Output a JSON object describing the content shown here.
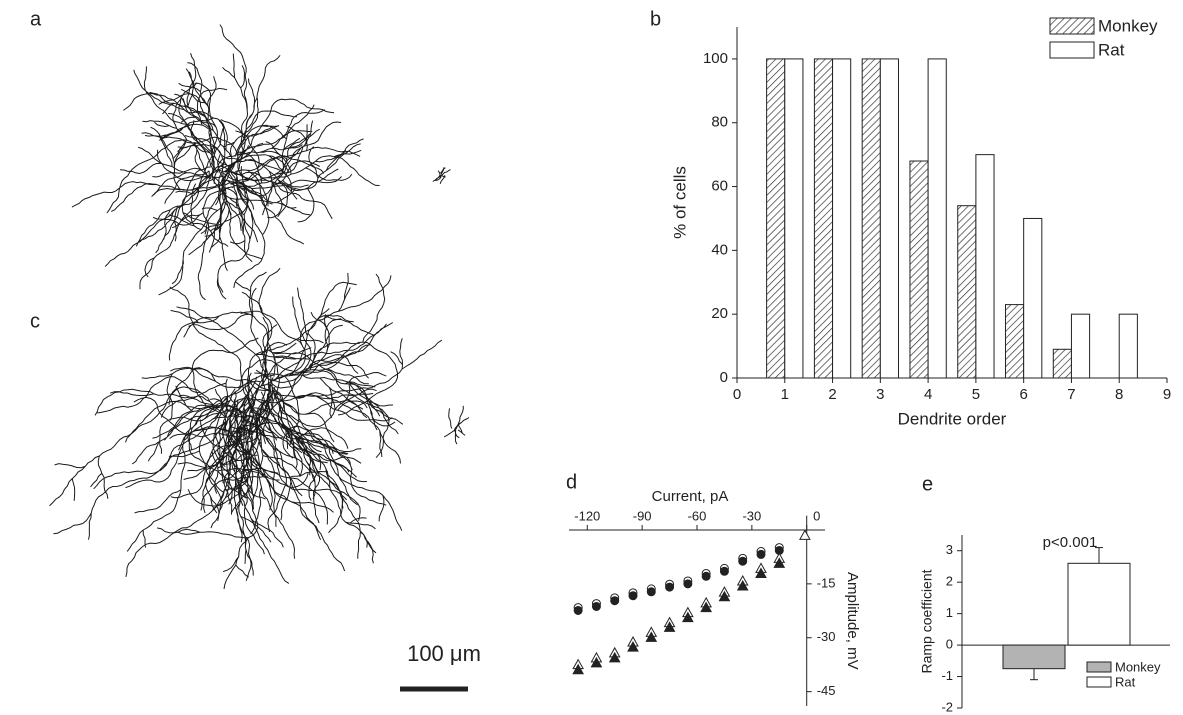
{
  "morphology": {
    "panels": [
      "a",
      "c"
    ],
    "scale_bar": "100 μm"
  },
  "chart_data": [
    {
      "type": "bar",
      "panel": "b",
      "x_label": "Dendrite order",
      "y_label": "% of cells",
      "x": [
        1,
        2,
        3,
        4,
        5,
        6,
        7,
        8
      ],
      "series": [
        {
          "name": "Monkey",
          "color": "#333333",
          "hatch": true,
          "values": [
            100,
            100,
            100,
            68,
            54,
            23,
            9,
            0
          ]
        },
        {
          "name": "Rat",
          "color": "#ffffff",
          "hatch": false,
          "values": [
            100,
            100,
            100,
            100,
            70,
            50,
            20,
            20
          ]
        }
      ],
      "xlim": [
        0,
        9
      ],
      "xticks": [
        0,
        1,
        2,
        3,
        4,
        5,
        6,
        7,
        8,
        9
      ],
      "ylim": [
        0,
        110
      ],
      "yticks": [
        0,
        20,
        40,
        60,
        80,
        100
      ],
      "legend": "top-right"
    },
    {
      "type": "scatter",
      "panel": "d",
      "x_label": "Current, pA",
      "y_label": "Amplitude, mV",
      "series": [
        {
          "marker": "circle",
          "filled": false,
          "color": "#222222",
          "x": [
            -125,
            -115,
            -105,
            -95,
            -85,
            -75,
            -65,
            -55,
            -45,
            -35,
            -25,
            -15
          ],
          "values": [
            -21.6,
            -20.5,
            -18.9,
            -17.5,
            -16.4,
            -15.1,
            -14.2,
            -12.1,
            -10.7,
            -7.9,
            -6.0,
            -4.9
          ]
        },
        {
          "marker": "circle",
          "filled": true,
          "color": "#222222",
          "x": [
            -125,
            -115,
            -105,
            -95,
            -85,
            -75,
            -65,
            -55,
            -45,
            -35,
            -25,
            -15
          ],
          "values": [
            -22.4,
            -21.3,
            -19.7,
            -18.3,
            -17.2,
            -15.9,
            -15.0,
            -12.9,
            -11.5,
            -8.7,
            -6.8,
            -5.7
          ]
        },
        {
          "marker": "triangle",
          "filled": false,
          "color": "#222222",
          "x": [
            -125,
            -115,
            -105,
            -95,
            -85,
            -75,
            -65,
            -55,
            -45,
            -35,
            -25,
            -15,
            -1
          ],
          "values": [
            -37.5,
            -35.6,
            -34.2,
            -31.2,
            -28.5,
            -25.8,
            -23.0,
            -20.3,
            -17.3,
            -14.2,
            -10.7,
            -7.9,
            -1.5
          ]
        },
        {
          "marker": "triangle",
          "filled": true,
          "color": "#222222",
          "x": [
            -125,
            -115,
            -105,
            -95,
            -85,
            -75,
            -65,
            -55,
            -45,
            -35,
            -25,
            -15
          ],
          "values": [
            -38.9,
            -37.0,
            -35.6,
            -32.6,
            -29.9,
            -27.1,
            -24.4,
            -21.6,
            -18.6,
            -15.6,
            -12.1,
            -9.3
          ]
        }
      ],
      "xlim": [
        -130,
        10
      ],
      "xticks": [
        -120,
        -90,
        -60,
        -30,
        0
      ],
      "ylim": [
        -49,
        4
      ],
      "yticks": [
        -45,
        -30,
        -15
      ]
    },
    {
      "type": "errorbar",
      "panel": "e",
      "y_label": "Ramp coefficient",
      "annotation": "p<0.001",
      "categories": [
        "Monkey",
        "Rat"
      ],
      "values": [
        -0.75,
        2.6
      ],
      "errors": [
        0.35,
        0.5
      ],
      "colors": [
        "#b3b3b3",
        "#ffffff"
      ],
      "ylim": [
        -2,
        3.5
      ],
      "yticks": [
        -2,
        -1,
        0,
        1,
        2,
        3
      ],
      "legend": "bottom-right"
    }
  ]
}
